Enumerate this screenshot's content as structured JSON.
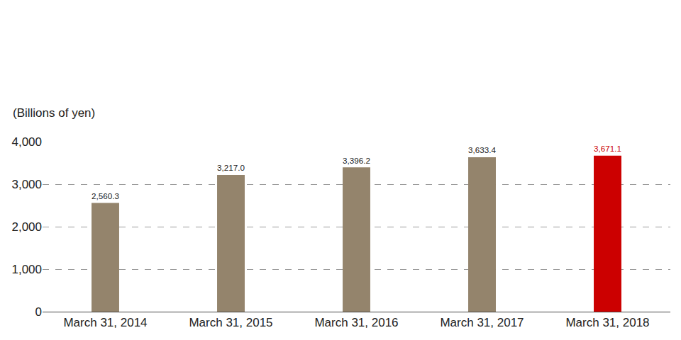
{
  "chart_data": {
    "type": "bar",
    "ylabel": "(Billions of yen)",
    "categories": [
      "March 31, 2014",
      "March 31, 2015",
      "March 31, 2016",
      "March 31, 2017",
      "March 31, 2018"
    ],
    "values": [
      2560.3,
      3217.0,
      3396.2,
      3633.4,
      3671.1
    ],
    "value_labels": [
      "2,560.3",
      "3,217.0",
      "3,396.2",
      "3,633.4",
      "3,671.1"
    ],
    "colors": [
      "#94846c",
      "#94846c",
      "#94846c",
      "#94846c",
      "#cc0000"
    ],
    "ylim": [
      0,
      4000
    ],
    "yticks": [
      0,
      {
        "value": 1000,
        "label": "1,000"
      },
      {
        "value": 2000,
        "label": "2,000"
      },
      {
        "value": 3000,
        "label": "3,000"
      },
      {
        "value": 4000,
        "label": "4,000"
      }
    ],
    "grid": true,
    "data_labels": true
  }
}
